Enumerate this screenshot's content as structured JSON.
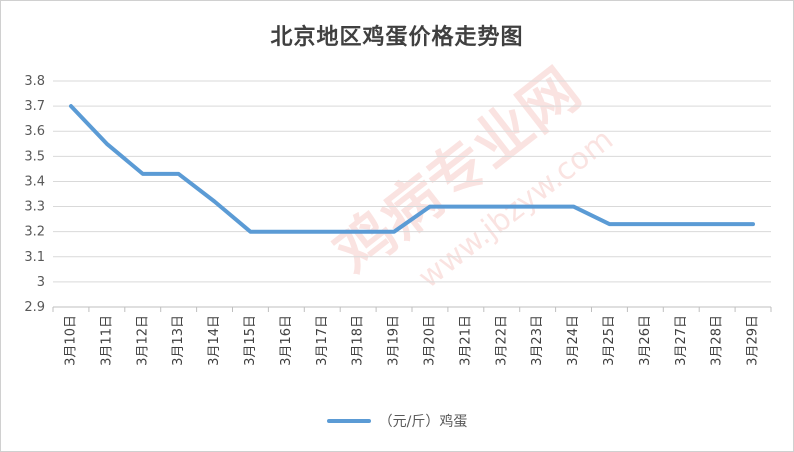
{
  "chart_data": {
    "type": "line",
    "title": "北京地区鸡蛋价格走势图",
    "categories": [
      "3月10日",
      "3月11日",
      "3月12日",
      "3月13日",
      "3月14日",
      "3月15日",
      "3月16日",
      "3月17日",
      "3月18日",
      "3月19日",
      "3月20日",
      "3月21日",
      "3月22日",
      "3月23日",
      "3月24日",
      "3月25日",
      "3月26日",
      "3月27日",
      "3月28日",
      "3月29日"
    ],
    "series": [
      {
        "name": "（元/斤）鸡蛋",
        "values": [
          3.7,
          3.55,
          3.43,
          3.43,
          3.32,
          3.2,
          3.2,
          3.2,
          3.2,
          3.2,
          3.3,
          3.3,
          3.3,
          3.3,
          3.3,
          3.23,
          3.23,
          3.23,
          3.23,
          3.23
        ]
      }
    ],
    "yticks": [
      "2.9",
      "3",
      "3.1",
      "3.2",
      "3.3",
      "3.4",
      "3.5",
      "3.6",
      "3.7",
      "3.8"
    ],
    "ylim": [
      2.9,
      3.8
    ],
    "grid": "horizontal",
    "legend_position": "bottom",
    "line_color": "#5b9bd5",
    "watermark": [
      "鸡病专业网",
      "www.jbzyw.com"
    ]
  }
}
